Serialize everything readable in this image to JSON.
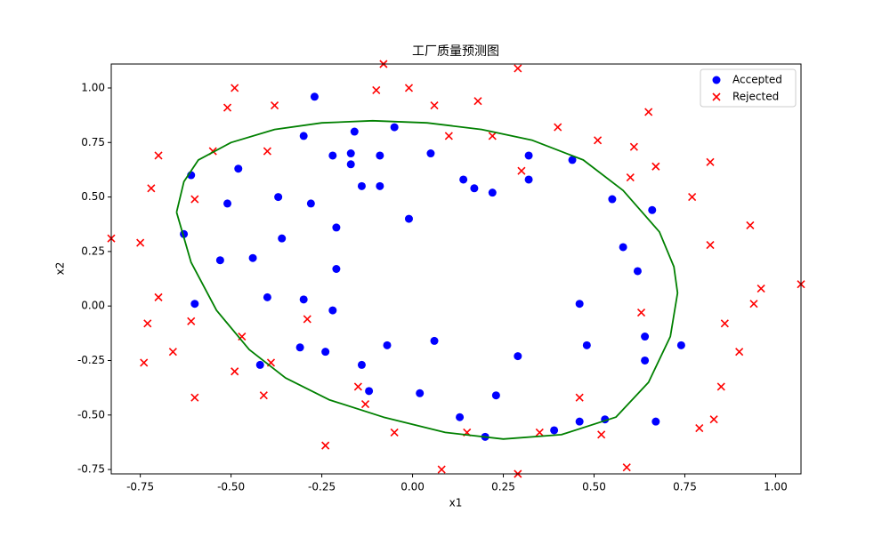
{
  "chart_data": {
    "type": "scatter",
    "title": "工厂质量预测图",
    "x_label": "x1",
    "y_label": "x2",
    "xlim": [
      -0.83,
      1.07
    ],
    "ylim": [
      -0.77,
      1.11
    ],
    "xticks": [
      -0.75,
      {
        "value": -0.5,
        "label": "-0.50"
      },
      -0.25,
      {
        "value": 0,
        "label": "0.00"
      },
      0.25,
      {
        "value": 0.5,
        "label": "0.50"
      },
      0.75,
      {
        "value": 1,
        "label": "1.00"
      }
    ],
    "yticks": [
      -0.75,
      {
        "value": -0.5,
        "label": "-0.50"
      },
      -0.25,
      {
        "value": 0,
        "label": "0.00"
      },
      0.25,
      {
        "value": 0.5,
        "label": "0.50"
      },
      0.75,
      {
        "value": 1,
        "label": "1.00"
      }
    ],
    "legend": "upper right",
    "series": [
      {
        "name": "Accepted",
        "color": "#0000ff",
        "marker": "o",
        "x": [
          -0.27,
          -0.3,
          -0.16,
          -0.05,
          -0.17,
          -0.22,
          -0.09,
          0.05,
          -0.17,
          -0.48,
          -0.61,
          -0.14,
          -0.09,
          0.14,
          0.17,
          0.22,
          0.32,
          0.32,
          0.44,
          -0.37,
          -0.28,
          -0.51,
          -0.01,
          -0.21,
          -0.63,
          -0.36,
          -0.53,
          -0.44,
          -0.21,
          0.55,
          0.58,
          0.66,
          0.62,
          -0.4,
          -0.3,
          -0.6,
          -0.22,
          0.46,
          -0.07,
          0.06,
          -0.31,
          -0.24,
          0.48,
          0.64,
          0.74,
          0.29,
          -0.42,
          -0.14,
          -0.12,
          0.02,
          0.23,
          0.64,
          0.13,
          0.46,
          0.53,
          0.67,
          0.39,
          0.2
        ],
        "y": [
          0.96,
          0.78,
          0.8,
          0.82,
          0.7,
          0.69,
          0.69,
          0.7,
          0.65,
          0.63,
          0.6,
          0.55,
          0.55,
          0.58,
          0.54,
          0.52,
          0.58,
          0.69,
          0.67,
          0.5,
          0.47,
          0.47,
          0.4,
          0.36,
          0.33,
          0.31,
          0.21,
          0.22,
          0.17,
          0.49,
          0.27,
          0.44,
          0.16,
          0.04,
          0.03,
          0.01,
          -0.02,
          0.01,
          -0.18,
          -0.16,
          -0.19,
          -0.21,
          -0.18,
          -0.14,
          -0.18,
          -0.23,
          -0.27,
          -0.27,
          -0.39,
          -0.4,
          -0.41,
          -0.25,
          -0.51,
          -0.53,
          -0.52,
          -0.53,
          -0.57,
          -0.6
        ]
      },
      {
        "name": "Rejected",
        "color": "#ff0000",
        "marker": "x",
        "x": [
          -0.08,
          0.29,
          -0.49,
          -0.1,
          -0.01,
          -0.51,
          -0.38,
          0.06,
          0.18,
          0.65,
          0.4,
          0.51,
          0.1,
          0.22,
          0.61,
          -0.7,
          -0.55,
          -0.4,
          0.67,
          0.82,
          0.3,
          0.6,
          -0.72,
          -0.6,
          0.77,
          0.93,
          -0.83,
          -0.75,
          0.82,
          0.96,
          1.07,
          -0.7,
          0.94,
          -0.61,
          -0.29,
          0.63,
          -0.73,
          -0.47,
          0.86,
          -0.66,
          -0.39,
          0.9,
          -0.74,
          -0.49,
          -0.6,
          -0.41,
          -0.15,
          -0.13,
          0.46,
          0.85,
          -0.24,
          -0.05,
          0.15,
          0.35,
          0.52,
          0.83,
          0.79,
          0.08,
          0.29,
          0.59
        ],
        "y": [
          1.11,
          1.09,
          1.0,
          0.99,
          1.0,
          0.91,
          0.92,
          0.92,
          0.94,
          0.89,
          0.82,
          0.76,
          0.78,
          0.78,
          0.73,
          0.69,
          0.71,
          0.71,
          0.64,
          0.66,
          0.62,
          0.59,
          0.54,
          0.49,
          0.5,
          0.37,
          0.31,
          0.29,
          0.28,
          0.08,
          0.1,
          0.04,
          0.01,
          -0.07,
          -0.06,
          -0.03,
          -0.08,
          -0.14,
          -0.08,
          -0.21,
          -0.26,
          -0.21,
          -0.26,
          -0.3,
          -0.42,
          -0.41,
          -0.37,
          -0.45,
          -0.42,
          -0.37,
          -0.64,
          -0.58,
          -0.58,
          -0.58,
          -0.59,
          -0.52,
          -0.56,
          -0.75,
          -0.77,
          -0.74
        ]
      }
    ],
    "contour": {
      "color": "#008000",
      "x": [
        -0.65,
        -0.63,
        -0.59,
        -0.5,
        -0.38,
        -0.25,
        -0.11,
        0.04,
        0.19,
        0.33,
        0.47,
        0.58,
        0.68,
        0.72,
        0.73,
        0.71,
        0.65,
        0.56,
        0.41,
        0.25,
        0.09,
        -0.08,
        -0.23,
        -0.35,
        -0.45,
        -0.54,
        -0.61,
        -0.65
      ],
      "y": [
        0.43,
        0.57,
        0.67,
        0.75,
        0.81,
        0.84,
        0.85,
        0.84,
        0.81,
        0.76,
        0.67,
        0.53,
        0.34,
        0.18,
        0.06,
        -0.14,
        -0.35,
        -0.51,
        -0.59,
        -0.61,
        -0.58,
        -0.51,
        -0.43,
        -0.33,
        -0.2,
        -0.02,
        0.2,
        0.43
      ]
    }
  }
}
